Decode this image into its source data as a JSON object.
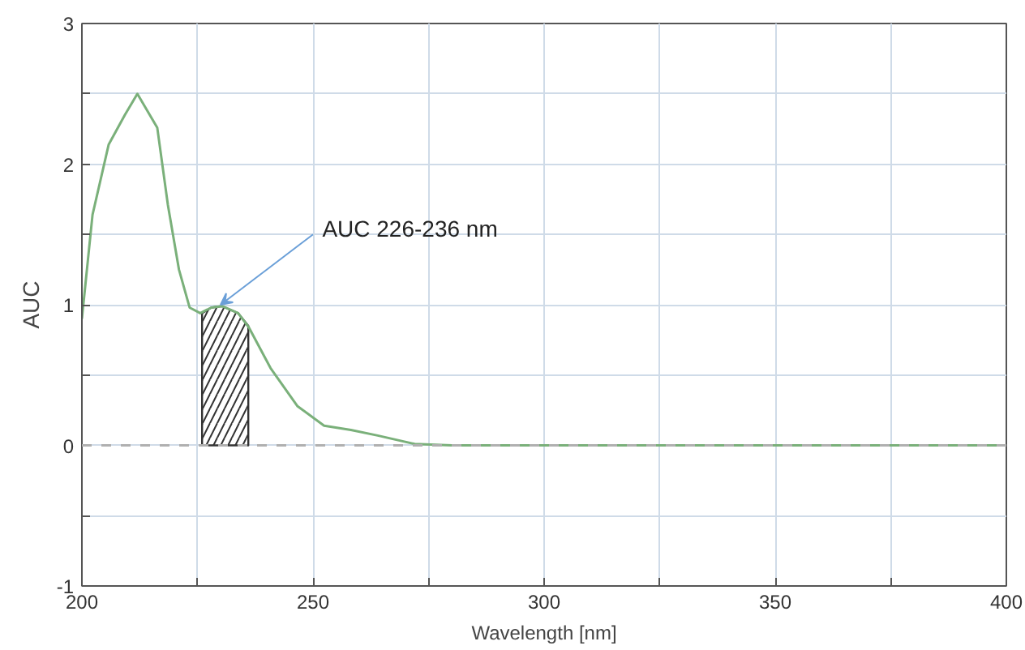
{
  "chart_data": {
    "type": "line",
    "xlabel": "Wavelength [nm]",
    "ylabel": "AUC",
    "xlim": [
      200,
      400
    ],
    "ylim": [
      -1,
      3
    ],
    "xticks": [
      200,
      {
        "value": 225,
        "label": null
      },
      250,
      {
        "value": 275,
        "label": null
      },
      300,
      {
        "value": 325,
        "label": null
      },
      350,
      {
        "value": 375,
        "label": null
      },
      400
    ],
    "yticks": [
      -1,
      {
        "value": -0.5,
        "label": null
      },
      0,
      {
        "value": 0.5,
        "label": null
      },
      1,
      {
        "value": 1.5,
        "label": null
      },
      2,
      {
        "value": 2.5,
        "label": null
      },
      3
    ],
    "grid": true,
    "line_style": "solid",
    "marker": "none",
    "series": [
      {
        "color": "#7ab07a",
        "x": [
          200,
          202.3,
          205.8,
          209.3,
          212,
          216.3,
          218.6,
          221,
          223.3,
          225.6,
          228,
          230.3,
          233.8,
          236.1,
          240.8,
          246.6,
          252.4,
          258.2,
          264,
          272,
          280,
          300,
          350,
          400
        ],
        "values": [
          0.9,
          1.64,
          2.14,
          2.35,
          2.5,
          2.26,
          1.71,
          1.25,
          0.98,
          0.94,
          0.98,
          0.99,
          0.94,
          0.84,
          0.55,
          0.28,
          0.14,
          0.11,
          0.07,
          0.01,
          0,
          0,
          0,
          0
        ]
      },
      {
        "type": "area",
        "color": "#333333",
        "x": [
          226,
          228,
          230.3,
          233.8,
          236
        ],
        "values": [
          0.94,
          0.98,
          0.99,
          0.94,
          0.85
        ]
      }
    ],
    "ref_lines": [
      {
        "axis": "y",
        "value": 0,
        "color": "#b0b0b0",
        "line_style": "dashed"
      }
    ],
    "annotations": [
      {
        "text": "AUC  226-236 nm",
        "x": 230,
        "y": 1.0
      }
    ]
  }
}
